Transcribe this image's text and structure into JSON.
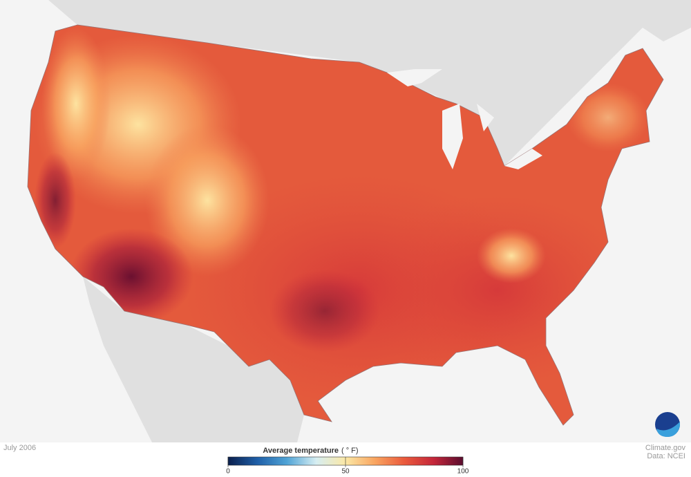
{
  "map": {
    "date": "July 2006",
    "legend": {
      "title": "Average temperature",
      "unit": "( ° F)",
      "range": [
        0,
        100
      ],
      "ticks": [
        0,
        50,
        100
      ],
      "colors": [
        "#0a1f4d",
        "#1f5fa8",
        "#4fa3d6",
        "#d6eef2",
        "#fbe8a6",
        "#f9a560",
        "#ea5a3c",
        "#c4263a",
        "#5a0c2e"
      ]
    },
    "credits": {
      "source": "Climate.gov",
      "data": "Data: NCEI"
    },
    "logo": "NOAA"
  }
}
